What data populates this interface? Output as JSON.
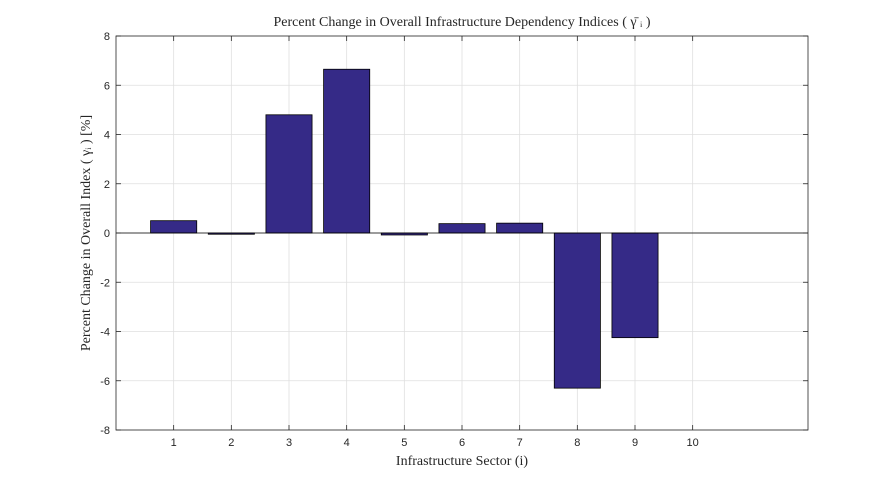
{
  "chart_data": {
    "type": "bar",
    "title": "Percent Change in Overall Infrastructure Dependency Indices ( γ̄ ᵢ )",
    "xlabel": "Infrastructure Sector (i)",
    "ylabel": "Percent Change in Overall Index ( γᵢ ) [%]",
    "categories": [
      "1",
      "2",
      "3",
      "4",
      "5",
      "6",
      "7",
      "8",
      "9",
      "10"
    ],
    "values": [
      0.5,
      -0.05,
      4.8,
      6.65,
      -0.08,
      0.38,
      0.4,
      -6.3,
      -4.25,
      0
    ],
    "xlim": [
      0,
      12
    ],
    "ylim": [
      -8,
      8
    ],
    "yticks": [
      -8,
      -6,
      -4,
      -2,
      0,
      2,
      4,
      6,
      8
    ],
    "grid": true,
    "bar_color": "#352a87"
  }
}
